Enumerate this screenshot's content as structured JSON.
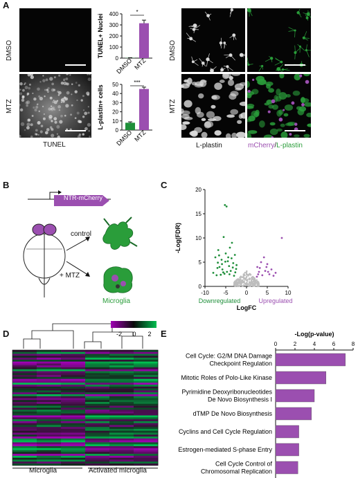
{
  "panels": {
    "A": "A",
    "B": "B",
    "C": "C",
    "D": "D",
    "E": "E"
  },
  "panel_a": {
    "left_rows": [
      "DMSO",
      "MTZ"
    ],
    "left_caption": "TUNEL",
    "right_rows": [
      "DMSO",
      "MTZ"
    ],
    "right_caption_left": "L-plastin",
    "right_caption_mcherry": "mCherry",
    "right_caption_slash": "/",
    "right_caption_lplastin": "L-plastin"
  },
  "panel_b": {
    "construct": "NTR-mCherry",
    "arrow_control": "control",
    "arrow_mtz": "+ MTZ",
    "microglia": "Microglia"
  },
  "panel_d": {
    "group_left": "Microglia",
    "group_right": "Activated microglia",
    "scale_ticks": [
      "-2",
      "0",
      "2"
    ]
  },
  "colors": {
    "purple": "#9b4fb0",
    "green": "#1f8f3a",
    "grey": "#bdbdbd",
    "mcherry": "#9b4fb0",
    "lplastin": "#2a9d3a"
  },
  "chart_data": [
    {
      "id": "tunel",
      "type": "bar",
      "categories": [
        "DMSO",
        "MTZ"
      ],
      "values": [
        2,
        315
      ],
      "errors": [
        2,
        28
      ],
      "ylabel": "TUNEL+ Nuclei",
      "ylim": [
        0,
        400
      ],
      "yticks": [
        "0",
        "100",
        "200",
        "300",
        "400"
      ],
      "significance": "*",
      "colors": [
        "#1f8f3a",
        "#9b4fb0"
      ]
    },
    {
      "id": "lplastin",
      "type": "bar",
      "categories": [
        "DMSO",
        "MTZ"
      ],
      "values": [
        8,
        45
      ],
      "errors": [
        1,
        2
      ],
      "ylabel": "L-plastin+ cells",
      "ylim": [
        0,
        50
      ],
      "yticks": [
        "0",
        "10",
        "20",
        "30",
        "40",
        "50"
      ],
      "significance": "***",
      "colors": [
        "#1f8f3a",
        "#9b4fb0"
      ]
    },
    {
      "id": "volcano",
      "type": "scatter",
      "xlabel": "LogFC",
      "ylabel": "-Log(FDR)",
      "xlim": [
        -10,
        10
      ],
      "ylim": [
        0,
        20
      ],
      "xticks": [
        "-10",
        "-5",
        "0",
        "5",
        "10"
      ],
      "yticks": [
        "0",
        "5",
        "10",
        "15",
        "20"
      ],
      "down_label": "Downregulated",
      "up_label": "Upregulated",
      "down_points": [
        [
          -5.2,
          16.8
        ],
        [
          -4.8,
          16.5
        ],
        [
          -5.5,
          10.2
        ],
        [
          -6.8,
          7.5
        ],
        [
          -4.0,
          8.0
        ],
        [
          -3.5,
          9.0
        ],
        [
          -7.5,
          6.0
        ],
        [
          -2.8,
          6.5
        ],
        [
          -6.0,
          5.5
        ],
        [
          -5.0,
          6.8
        ],
        [
          -4.5,
          5.2
        ],
        [
          -3.2,
          4.8
        ],
        [
          -6.5,
          4.0
        ],
        [
          -5.8,
          3.5
        ],
        [
          -4.2,
          4.2
        ],
        [
          -3.8,
          3.2
        ],
        [
          -7.0,
          3.8
        ],
        [
          -2.5,
          3.6
        ],
        [
          -5.3,
          2.6
        ],
        [
          -4.7,
          3.0
        ],
        [
          -6.2,
          2.4
        ],
        [
          -3.0,
          2.2
        ],
        [
          -8.0,
          2.8
        ],
        [
          -5.9,
          4.6
        ],
        [
          -4.4,
          6.0
        ],
        [
          -3.6,
          5.8
        ],
        [
          -6.6,
          6.4
        ],
        [
          -2.7,
          2.9
        ],
        [
          -7.2,
          2.3
        ],
        [
          -5.1,
          5.1
        ],
        [
          -4.1,
          2.5
        ],
        [
          -3.3,
          3.9
        ],
        [
          -6.9,
          4.9
        ],
        [
          -2.4,
          4.4
        ],
        [
          -5.6,
          2.9
        ]
      ],
      "up_points": [
        [
          8.5,
          10.0
        ],
        [
          3.5,
          5.0
        ],
        [
          4.2,
          6.0
        ],
        [
          5.0,
          4.6
        ],
        [
          3.0,
          3.0
        ],
        [
          6.0,
          3.5
        ],
        [
          4.5,
          3.2
        ],
        [
          2.6,
          4.0
        ],
        [
          5.5,
          2.5
        ],
        [
          3.8,
          2.3
        ],
        [
          7.0,
          2.8
        ],
        [
          2.8,
          2.5
        ],
        [
          4.8,
          4.0
        ],
        [
          6.5,
          2.2
        ],
        [
          3.2,
          3.8
        ],
        [
          5.2,
          3.0
        ],
        [
          2.5,
          2.0
        ]
      ],
      "grey_band": {
        "xmin": -3,
        "xmax": 3,
        "ymax": 3.2
      }
    },
    {
      "id": "ipa",
      "type": "bar",
      "orientation": "horizontal",
      "xlabel": "-Log(p-value)",
      "xlim": [
        0,
        8
      ],
      "xticks": [
        "0",
        "2",
        "4",
        "6",
        "8"
      ],
      "categories": [
        [
          "Cell Cycle: G2/M DNA Damage",
          "Checkpoint Regulation"
        ],
        [
          "Mitotic Roles of Polo-Like Kinase"
        ],
        [
          "Pyrimidine Deoxyribonucleotides",
          "De Novo Biosynthesis I"
        ],
        [
          "dTMP De Novo Biosynthesis"
        ],
        [
          "Cyclins and Cell Cycle Regulation"
        ],
        [
          "Estrogen-mediated S-phase Entry"
        ],
        [
          "Cell Cycle Control of",
          "Chromosomal Replication"
        ]
      ],
      "values": [
        7.2,
        5.2,
        4.0,
        3.7,
        2.4,
        2.4,
        2.3
      ],
      "color": "#9b4fb0"
    }
  ]
}
